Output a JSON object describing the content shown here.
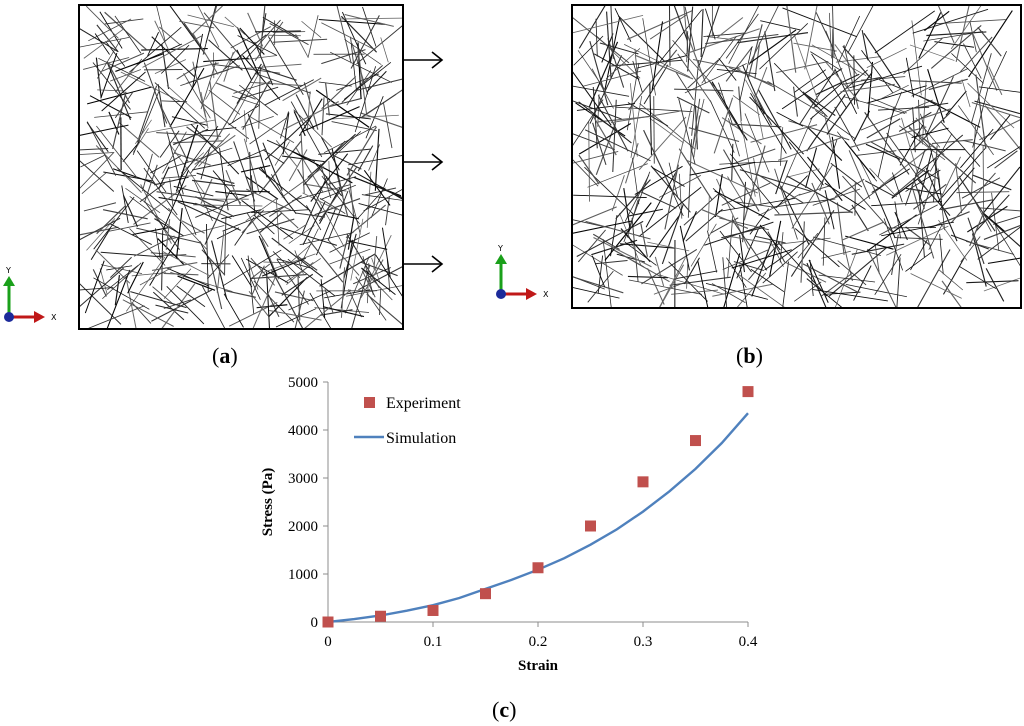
{
  "panels": {
    "a": {
      "label_open": "(",
      "label_letter": "a",
      "label_close": ")"
    },
    "b": {
      "label_open": "(",
      "label_letter": "b",
      "label_close": ")"
    },
    "c": {
      "label_open": "(",
      "label_letter": "c",
      "label_close": ")"
    }
  },
  "axis_triad": {
    "y_label": "Y",
    "x_label": "X"
  },
  "colors": {
    "fiber": "#1a1a1a",
    "triad_y": "#1aa01a",
    "triad_x": "#c01818",
    "triad_origin": "#1c2a9a",
    "experiment": "#c0504d",
    "simulation": "#4f81bd"
  },
  "chart_data": {
    "type": "scatter",
    "xlabel": "Strain",
    "ylabel": "Stress (Pa)",
    "xlim": [
      0,
      0.4
    ],
    "ylim": [
      0,
      5000
    ],
    "x_ticks": [
      0,
      0.1,
      0.2,
      0.3,
      0.4
    ],
    "x_tick_labels": [
      "0",
      "0.1",
      "0.2",
      "0.3",
      "0.4"
    ],
    "y_ticks": [
      0,
      1000,
      2000,
      3000,
      4000,
      5000
    ],
    "y_tick_labels": [
      "0",
      "1000",
      "2000",
      "3000",
      "4000",
      "5000"
    ],
    "grid": false,
    "legend_position": "top-left",
    "series": [
      {
        "name": "Experiment",
        "kind": "markers",
        "x": [
          0,
          0.05,
          0.1,
          0.15,
          0.2,
          0.25,
          0.3,
          0.35,
          0.4
        ],
        "y": [
          0,
          120,
          240,
          590,
          1130,
          2000,
          2920,
          3780,
          4800
        ]
      },
      {
        "name": "Simulation",
        "kind": "line",
        "x": [
          0,
          0.025,
          0.05,
          0.075,
          0.1,
          0.125,
          0.15,
          0.175,
          0.2,
          0.225,
          0.25,
          0.275,
          0.3,
          0.325,
          0.35,
          0.375,
          0.4
        ],
        "y": [
          0,
          60,
          135,
          235,
          350,
          500,
          690,
          880,
          1090,
          1330,
          1610,
          1930,
          2300,
          2720,
          3190,
          3730,
          4350
        ]
      }
    ]
  }
}
